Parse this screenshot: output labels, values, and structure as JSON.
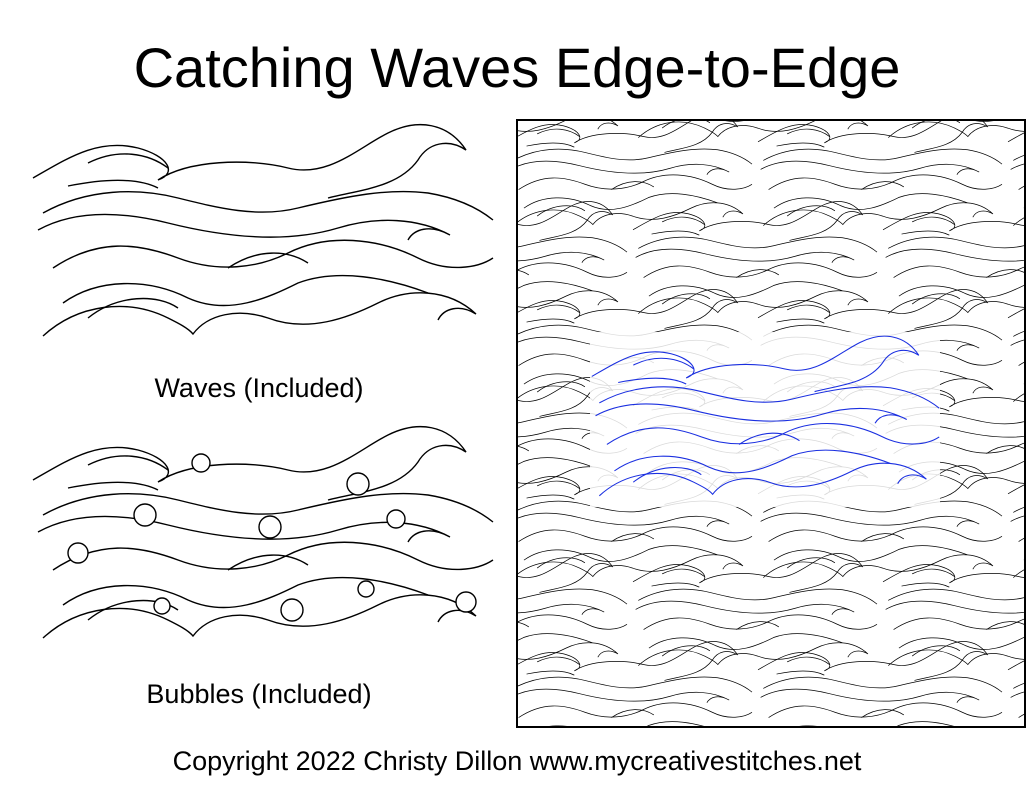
{
  "title": "Catching Waves Edge-to-Edge",
  "panels": [
    {
      "caption": "Waves (Included)"
    },
    {
      "caption": "Bubbles (Included)"
    }
  ],
  "footer": "Copyright 2022 Christy Dillon www.mycreativestitches.net"
}
